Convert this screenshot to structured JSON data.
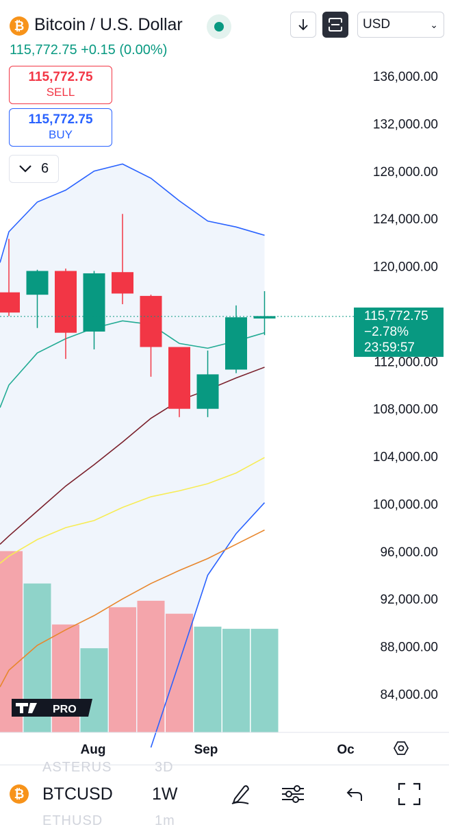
{
  "header": {
    "title": "Bitcoin / U.S. Dollar",
    "logo_glyph": "₿",
    "price_line": "115,772.75 +0.15 (0.00%)",
    "currency": "USD",
    "colors": {
      "up": "#089981",
      "down": "#f23645",
      "buy": "#2962ff"
    }
  },
  "trade": {
    "sell_price": "115,772.75",
    "sell_label": "SELL",
    "buy_price": "115,772.75",
    "buy_label": "BUY"
  },
  "indicators_toggle": {
    "count": "6"
  },
  "chart_data": {
    "type": "candlestick",
    "y_axis_labels": [
      "136,000.00",
      "132,000.00",
      "128,000.00",
      "124,000.00",
      "120,000.00",
      "112,000.00",
      "108,000.00",
      "104,000.00",
      "100,000.00",
      "96,000.00",
      "92,000.00",
      "88,000.00",
      "84,000.00"
    ],
    "ylim": [
      82000,
      138000
    ],
    "x_axis_labels": [
      "Aug",
      "Sep",
      "Oc"
    ],
    "candles": [
      {
        "open": 117800,
        "high": 122300,
        "low": 115800,
        "close": 116100
      },
      {
        "open": 117600,
        "high": 119700,
        "low": 114800,
        "close": 119600
      },
      {
        "open": 119600,
        "high": 119800,
        "low": 112200,
        "close": 114400
      },
      {
        "open": 114500,
        "high": 119600,
        "low": 113000,
        "close": 119400
      },
      {
        "open": 119500,
        "high": 124400,
        "low": 116800,
        "close": 117700
      },
      {
        "open": 117500,
        "high": 117600,
        "low": 110700,
        "close": 113200
      },
      {
        "open": 113200,
        "high": 113200,
        "low": 107300,
        "close": 108000
      },
      {
        "open": 108000,
        "high": 112900,
        "low": 107300,
        "close": 110900
      },
      {
        "open": 111300,
        "high": 116700,
        "low": 111000,
        "close": 115700
      },
      {
        "open": 115600,
        "high": 117900,
        "low": 114200,
        "close": 115800
      }
    ],
    "volume": [
      {
        "value": 0.84,
        "dir": "down"
      },
      {
        "value": 0.69,
        "dir": "up"
      },
      {
        "value": 0.5,
        "dir": "down"
      },
      {
        "value": 0.39,
        "dir": "up"
      },
      {
        "value": 0.58,
        "dir": "down"
      },
      {
        "value": 0.61,
        "dir": "down"
      },
      {
        "value": 0.55,
        "dir": "down"
      },
      {
        "value": 0.49,
        "dir": "up"
      },
      {
        "value": 0.48,
        "dir": "up"
      },
      {
        "value": 0.48,
        "dir": "up"
      }
    ],
    "bollinger_upper": [
      122900,
      125400,
      126400,
      128000,
      128600,
      127400,
      125500,
      123800,
      123300,
      122600
    ],
    "bollinger_lower": [
      null,
      null,
      null,
      null,
      null,
      null,
      null,
      null,
      null,
      null
    ],
    "bollinger_mid": [
      110000,
      112700,
      113900,
      114800,
      115400,
      115100,
      113500,
      113100,
      113700,
      114400
    ],
    "ma_dark_red": [
      97300,
      99400,
      101500,
      103300,
      105200,
      107200,
      108700,
      109600,
      110600,
      111500
    ],
    "ma_yellow": [
      95600,
      97000,
      98000,
      98600,
      99700,
      100600,
      101100,
      101700,
      102600,
      103900
    ],
    "ma_orange": [
      86000,
      88100,
      89400,
      90600,
      92000,
      93300,
      94400,
      95400,
      96600,
      97800
    ],
    "ma_blue": [
      null,
      null,
      null,
      null,
      null,
      79500,
      86700,
      94000,
      97500,
      100100
    ],
    "last_price": {
      "price": "115,772.75",
      "change": "−2.78%",
      "countdown": "23:59:57",
      "value": 115772.75
    }
  },
  "bottom_bar": {
    "symbol": "BTCUSD",
    "interval": "1W",
    "ghost_above_left": "ASTERUS",
    "ghost_above_right": "3D",
    "ghost_below_left": "ETHUSD",
    "ghost_below_right": "1m",
    "icons": [
      "drawing-pen-icon",
      "settings-sliders-icon",
      "undo-icon",
      "fullscreen-icon"
    ]
  }
}
